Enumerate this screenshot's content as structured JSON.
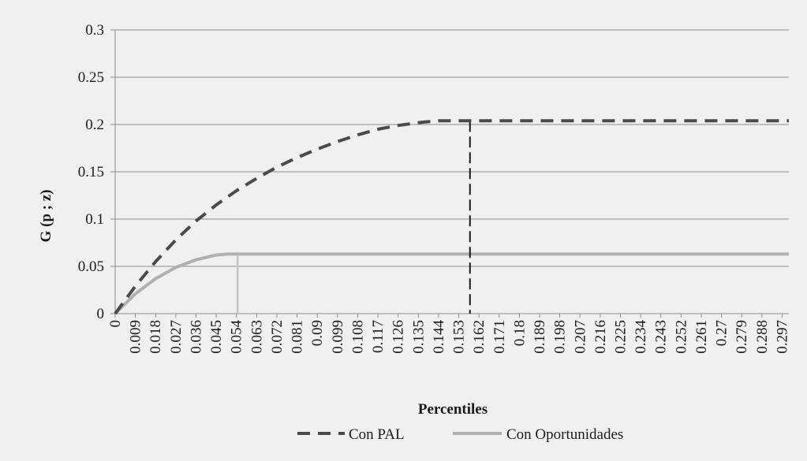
{
  "chart_data": {
    "type": "line",
    "xlabel": "Percentiles",
    "ylabel": "G (p ; z)",
    "xlim": [
      0,
      0.3
    ],
    "ylim": [
      0,
      0.3
    ],
    "x_ticks": [
      "0",
      "0.009",
      "0.018",
      "0.027",
      "0.036",
      "0.045",
      "0.054",
      "0.063",
      "0.072",
      "0.081",
      "0.09",
      "0.099",
      "0.108",
      "0.117",
      "0.126",
      "0.135",
      "0.144",
      "0.153",
      "0.162",
      "0.171",
      "0.18",
      "0.189",
      "0.198",
      "0.207",
      "0.216",
      "0.225",
      "0.234",
      "0.243",
      "0.252",
      "0.261",
      "0.27",
      "0.279",
      "0.288",
      "0.297"
    ],
    "y_ticks": [
      "0",
      "0.05",
      "0.1",
      "0.15",
      "0.2",
      "0.25",
      "0.3"
    ],
    "grid": true,
    "legend_position": "bottom",
    "series": [
      {
        "name": "Con PAL",
        "style": "dashed",
        "color": "#4a4a4a",
        "x": [
          0,
          0.009,
          0.018,
          0.027,
          0.036,
          0.045,
          0.054,
          0.063,
          0.072,
          0.081,
          0.09,
          0.099,
          0.108,
          0.117,
          0.126,
          0.135,
          0.144,
          0.153,
          0.158,
          0.18,
          0.207,
          0.234,
          0.261,
          0.288,
          0.3
        ],
        "y": [
          0,
          0.029,
          0.055,
          0.078,
          0.098,
          0.115,
          0.13,
          0.143,
          0.155,
          0.165,
          0.174,
          0.182,
          0.189,
          0.195,
          0.199,
          0.202,
          0.204,
          0.204,
          0.204,
          0.204,
          0.204,
          0.204,
          0.204,
          0.204,
          0.204
        ],
        "threshold_x": 0.158
      },
      {
        "name": "Con Oportunidades",
        "style": "solid",
        "color": "#b0b0b0",
        "x": [
          0,
          0.009,
          0.018,
          0.027,
          0.036,
          0.045,
          0.05,
          0.054,
          0.063,
          0.09,
          0.135,
          0.18,
          0.225,
          0.27,
          0.3
        ],
        "y": [
          0,
          0.021,
          0.037,
          0.049,
          0.057,
          0.062,
          0.063,
          0.063,
          0.063,
          0.063,
          0.063,
          0.063,
          0.063,
          0.063,
          0.063
        ],
        "threshold_x": 0.0545
      }
    ]
  }
}
